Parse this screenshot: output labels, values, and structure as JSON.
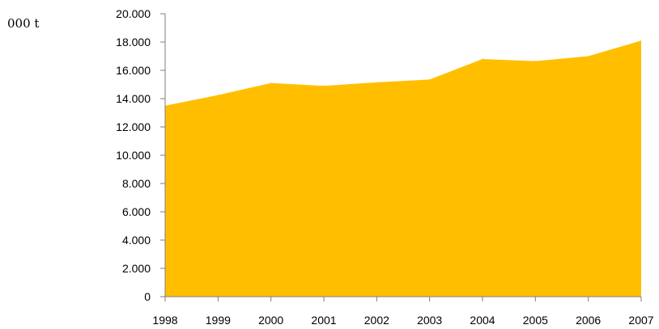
{
  "unit_label": "000 t",
  "chart_data": {
    "type": "area",
    "x": [
      "1998",
      "1999",
      "2000",
      "2001",
      "2002",
      "2003",
      "2004",
      "2005",
      "2006",
      "2007"
    ],
    "series": [
      {
        "values": [
          13500,
          14250,
          15100,
          14900,
          15150,
          15350,
          16800,
          16650,
          17000,
          18100
        ],
        "color": "#FFBF00"
      }
    ],
    "y_tick_labels": [
      "0",
      "2.000",
      "4.000",
      "6.000",
      "8.000",
      "10.000",
      "12.000",
      "14.000",
      "16.000",
      "18.000",
      "20.000"
    ],
    "ylim": [
      0,
      20000
    ],
    "ytick_step": 2000,
    "grid": false,
    "legend": "none",
    "axis_color": "#7f7f7f"
  }
}
